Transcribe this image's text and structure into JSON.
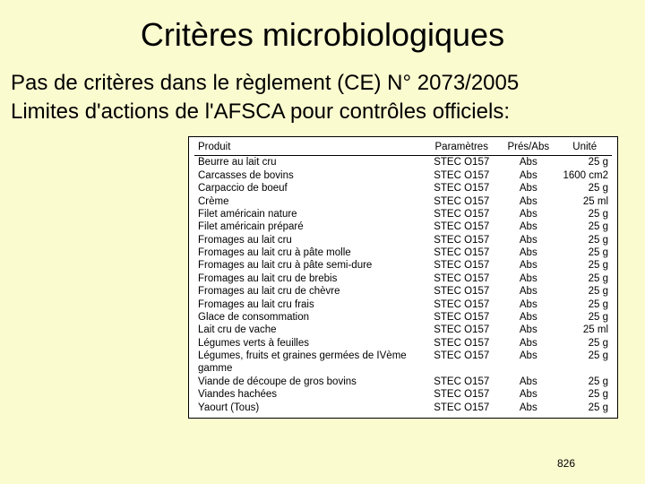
{
  "title": "Critères microbiologiques",
  "intro": {
    "p1": "Pas de critères dans le règlement (CE) N° 2073/2005",
    "p2": "Limites d'actions de l'AFSCA pour contrôles officiels:"
  },
  "table": {
    "columns": [
      "Produit",
      "Paramètres",
      "Prés/Abs",
      "Unité"
    ],
    "rows": [
      [
        "Beurre au lait cru",
        "STEC O157",
        "Abs",
        "25 g"
      ],
      [
        "Carcasses de bovins",
        "STEC O157",
        "Abs",
        "1600 cm2"
      ],
      [
        "Carpaccio de boeuf",
        "STEC O157",
        "Abs",
        "25 g"
      ],
      [
        "Crème",
        "STEC O157",
        "Abs",
        "25 ml"
      ],
      [
        "Filet américain nature",
        "STEC O157",
        "Abs",
        "25 g"
      ],
      [
        "Filet américain préparé",
        "STEC O157",
        "Abs",
        "25 g"
      ],
      [
        "Fromages au lait cru",
        "STEC O157",
        "Abs",
        "25 g"
      ],
      [
        "Fromages au lait cru à pâte molle",
        "STEC O157",
        "Abs",
        "25 g"
      ],
      [
        "Fromages au lait cru à pâte semi-dure",
        "STEC O157",
        "Abs",
        "25 g"
      ],
      [
        "Fromages au lait cru de brebis",
        "STEC O157",
        "Abs",
        "25 g"
      ],
      [
        "Fromages au lait cru de chèvre",
        "STEC O157",
        "Abs",
        "25 g"
      ],
      [
        "Fromages au lait cru frais",
        "STEC O157",
        "Abs",
        "25 g"
      ],
      [
        "Glace de consommation",
        "STEC O157",
        "Abs",
        "25 g"
      ],
      [
        "Lait cru de vache",
        "STEC O157",
        "Abs",
        "25 ml"
      ],
      [
        "Légumes verts à feuilles",
        "STEC O157",
        "Abs",
        "25 g"
      ],
      [
        "Légumes, fruits et graines germées de IVème gamme",
        "STEC O157",
        "Abs",
        "25 g"
      ],
      [
        "Viande de découpe de gros bovins",
        "STEC O157",
        "Abs",
        "25 g"
      ],
      [
        "Viandes hachées",
        "STEC O157",
        "Abs",
        "25 g"
      ],
      [
        "Yaourt (Tous)",
        "STEC O157",
        "Abs",
        "25 g"
      ]
    ]
  },
  "pageNumber": "826"
}
